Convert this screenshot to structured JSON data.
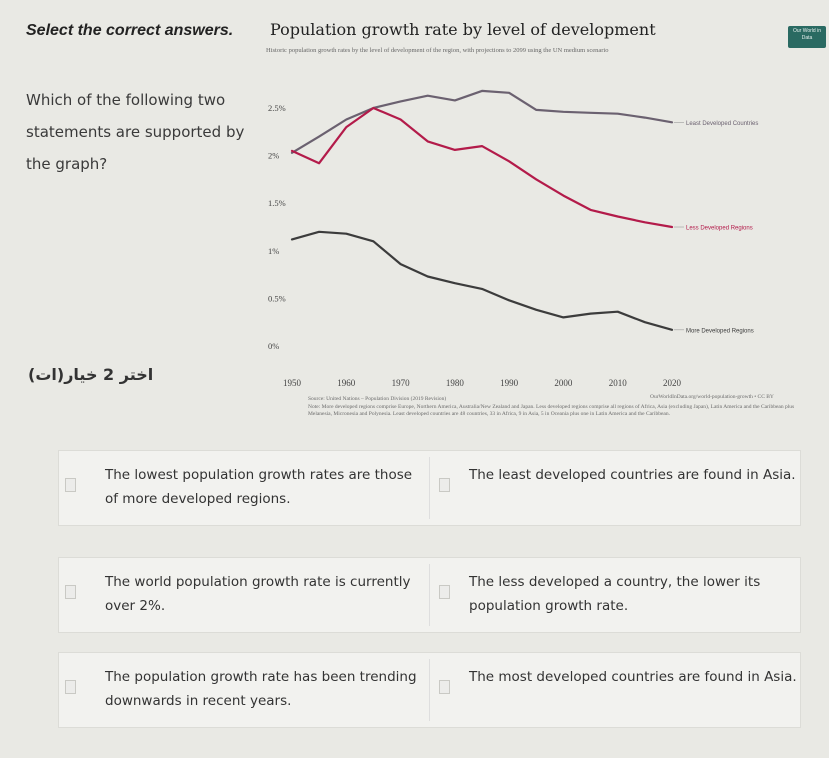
{
  "page": {
    "title": "Select the correct answers.",
    "question": "Which of the following two statements are supported by the graph?",
    "hint": "اختر 2 خيار(ات)"
  },
  "chart": {
    "title": "Population growth rate by level of development",
    "subtitle": "Historic population growth rates by the level of development of the region, with projections to 2099 using the UN medium scenario",
    "badge": "Our World in Data",
    "source": "Source: United Nations – Population Division (2019 Revision)",
    "note": "Note: More developed regions comprise Europe, Northern America, Australia/New Zealand and Japan. Less developed regions comprise all regions of Africa, Asia (excluding Japan), Latin America and the Caribbean plus Melanesia, Micronesia and Polynesia. Least developed countries are 48 countries, 33 in Africa, 9 in Asia, 5 in Oceania plus one in Latin America and the Caribbean.",
    "license": "OurWorldInData.org/world-population-growth • CC BY"
  },
  "chart_data": {
    "type": "line",
    "title": "Population growth rate by level of development",
    "xlabel": "",
    "ylabel": "",
    "x_ticks": [
      "1950",
      "1960",
      "1970",
      "1980",
      "1990",
      "2000",
      "2010",
      "2020"
    ],
    "y_ticks": [
      "0%",
      "0.5%",
      "1%",
      "1.5%",
      "2%",
      "2.5%"
    ],
    "xlim": [
      1950,
      2020
    ],
    "ylim": [
      0,
      2.7
    ],
    "grid": false,
    "series": [
      {
        "name": "Least Developed Countries",
        "color": "#6b6170",
        "x": [
          1950,
          1955,
          1960,
          1965,
          1970,
          1975,
          1980,
          1985,
          1990,
          1995,
          2000,
          2005,
          2010,
          2015,
          2020
        ],
        "y": [
          2.03,
          2.2,
          2.38,
          2.5,
          2.57,
          2.63,
          2.58,
          2.68,
          2.66,
          2.48,
          2.46,
          2.45,
          2.44,
          2.4,
          2.35
        ]
      },
      {
        "name": "Less Developed Regions",
        "color": "#b31b4a",
        "x": [
          1950,
          1955,
          1960,
          1965,
          1970,
          1975,
          1980,
          1985,
          1990,
          1995,
          2000,
          2005,
          2010,
          2015,
          2020
        ],
        "y": [
          2.05,
          1.92,
          2.3,
          2.5,
          2.38,
          2.15,
          2.06,
          2.1,
          1.94,
          1.75,
          1.58,
          1.43,
          1.36,
          1.3,
          1.25
        ]
      },
      {
        "name": "More Developed Regions",
        "color": "#3c3c3c",
        "x": [
          1950,
          1955,
          1960,
          1965,
          1970,
          1975,
          1980,
          1985,
          1990,
          1995,
          2000,
          2005,
          2010,
          2015,
          2020
        ],
        "y": [
          1.12,
          1.2,
          1.18,
          1.1,
          0.86,
          0.73,
          0.66,
          0.6,
          0.48,
          0.38,
          0.3,
          0.34,
          0.36,
          0.25,
          0.17
        ]
      }
    ]
  },
  "options": [
    {
      "left": "The lowest population growth rates are those of more developed regions.",
      "right": "The least developed countries are found in Asia."
    },
    {
      "left": "The world population growth rate is currently over 2%.",
      "right": "The less developed a country, the lower its population growth rate."
    },
    {
      "left": "The population growth rate has been trending downwards in recent years.",
      "right": "The most developed countries are found in Asia."
    }
  ]
}
